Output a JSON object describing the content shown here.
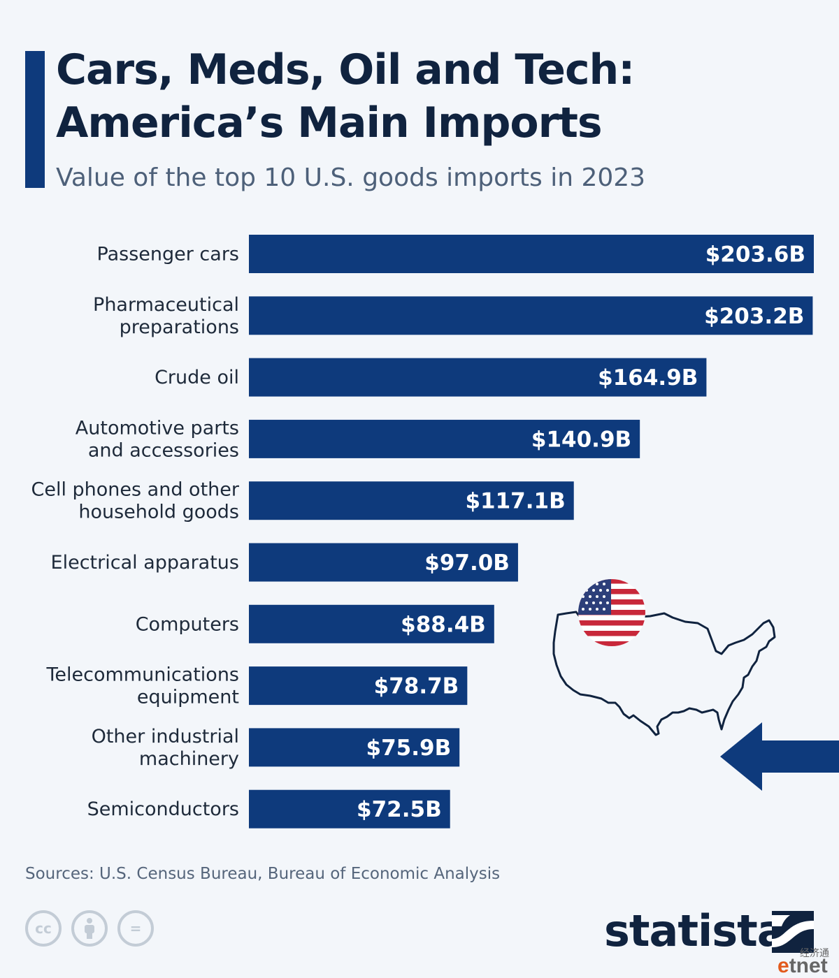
{
  "header": {
    "title_line1": "Cars, Meds, Oil and Tech:",
    "title_line2": "America’s Main Imports",
    "subtitle": "Value of the top 10 U.S. goods imports in 2023"
  },
  "chart_data": {
    "type": "bar",
    "orientation": "horizontal",
    "categories": [
      "Passenger cars",
      "Pharmaceutical preparations",
      "Crude oil",
      "Automotive parts and accessories",
      "Cell phones and other household goods",
      "Electrical apparatus",
      "Computers",
      "Telecommunications equipment",
      "Other industrial machinery",
      "Semiconductors"
    ],
    "category_label_lines": [
      [
        "Passenger cars"
      ],
      [
        "Pharmaceutical",
        "preparations"
      ],
      [
        "Crude oil"
      ],
      [
        "Automotive parts",
        "and accessories"
      ],
      [
        "Cell phones and other",
        "household goods"
      ],
      [
        "Electrical apparatus"
      ],
      [
        "Computers"
      ],
      [
        "Telecommunications",
        "equipment"
      ],
      [
        "Other industrial",
        "machinery"
      ],
      [
        "Semiconductors"
      ]
    ],
    "values": [
      203.6,
      203.2,
      164.9,
      140.9,
      117.1,
      97.0,
      88.4,
      78.7,
      75.9,
      72.5
    ],
    "data_labels": [
      "$203.6B",
      "$203.2B",
      "$164.9B",
      "$140.9B",
      "$117.1B",
      "$97.0B",
      "$88.4B",
      "$78.7B",
      "$75.9B",
      "$72.5B"
    ],
    "unit": "billion U.S. dollars",
    "bar_color": "#0e3a7c",
    "grid": false,
    "legend": "none"
  },
  "footer": {
    "source": "Sources: U.S. Census Bureau, Bureau of Economic Analysis",
    "license_icons": [
      "cc-icon",
      "attribution-icon",
      "no-derivatives-icon"
    ],
    "cc_text": "cc",
    "nd_text": "=",
    "brand": "statista",
    "watermark_cn": "经济通",
    "watermark_e": "e",
    "watermark_rest": "tnet"
  },
  "illustrations": [
    "us-flag-icon",
    "us-map-outline",
    "left-arrow-icon"
  ],
  "colors": {
    "background": "#f3f6fa",
    "bar": "#0e3a7c",
    "title": "#10233f",
    "subtitle": "#4d6079"
  }
}
